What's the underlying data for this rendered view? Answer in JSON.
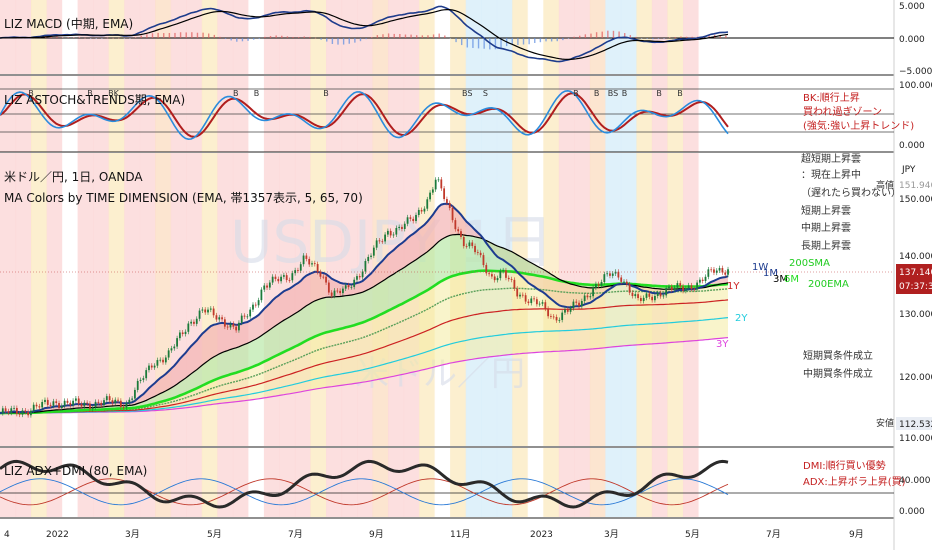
{
  "colors": {
    "price_line": "#1b3f94",
    "candle_up": "#1b7a3a",
    "candle_down": "#c0392b",
    "ma_short": "#1d3c8f",
    "ma_mid": "#000000",
    "ma_green": "#22dd22",
    "ma_1y": "#cc2222",
    "ma_2y": "#22ccdd",
    "ma_3y": "#dd44dd",
    "macd": "#1e3c8c",
    "signal": "#000000",
    "stoch_fast": "#2a8cdc",
    "stoch_slow": "#b01e1e",
    "adx": "#2a2a2a",
    "plus_di": "#2a7ad6",
    "minus_di": "#c0392b",
    "last_price_bg": "#b02020"
  },
  "macd_panel": {
    "title": "LIZ MACD (中期, EMA)",
    "axis_labels": [
      "5.000",
      "0.000",
      "−5.000"
    ]
  },
  "stoch_panel": {
    "title": "LIZ ASTOCH&TRENDS期, EMA)",
    "axis_labels": [
      "100.000",
      "0.000"
    ],
    "legend_lines": [
      "BK:順行上昇",
      "買われ過ぎゾーン",
      "(強気:強い上昇トレンド)"
    ],
    "markers": [
      {
        "t": 0.035,
        "text": "B"
      },
      {
        "t": 0.12,
        "text": "B"
      },
      {
        "t": 0.15,
        "text": "BK"
      },
      {
        "t": 0.33,
        "text": "B"
      },
      {
        "t": 0.36,
        "text": "B"
      },
      {
        "t": 0.46,
        "text": "B"
      },
      {
        "t": 0.66,
        "text": "BS"
      },
      {
        "t": 0.69,
        "text": "S"
      },
      {
        "t": 0.82,
        "text": "B"
      },
      {
        "t": 0.85,
        "text": "B"
      },
      {
        "t": 0.87,
        "text": "BS"
      },
      {
        "t": 0.89,
        "text": "B"
      },
      {
        "t": 0.94,
        "text": "B"
      },
      {
        "t": 0.97,
        "text": "B"
      }
    ]
  },
  "main_panel": {
    "symbol_line": "米ドル／円, 1日, OANDA",
    "indicator_line": "MA Colors by TIME DIMENSION (EMA, 帯1357表示, 5, 65, 70)",
    "watermark": "USDJPY 1日",
    "watermark_sub": "米ドル／円",
    "currency": "JPY",
    "high_label": "高値",
    "high_value": "151.946",
    "low_label": "安値",
    "low_value": "112.532",
    "last_price": "137.140",
    "countdown": "07:37:33",
    "axis_labels": [
      "150.000",
      "140.000",
      "130.000",
      "120.000",
      "110.000"
    ],
    "legend_top": [
      "超短期上昇雲",
      "：現在上昇中",
      "（遅れたら買わない）",
      "短期上昇雲",
      "中期上昇雲",
      "長期上昇雲"
    ],
    "legend_bottom": [
      "短期買条件成立",
      "中期買条件成立"
    ],
    "ma_tags": {
      "w1": "1W",
      "m1": "1M",
      "m3": "3M",
      "m6": "6M",
      "sma200": "200SMA",
      "ema200": "200EMA",
      "y1": "1Y",
      "y2": "2Y",
      "y3": "3Y"
    }
  },
  "adx_panel": {
    "title": "LIZ ADX+DMI (80, EMA)",
    "axis_labels": [
      "40.000",
      "0.000"
    ],
    "legend_lines": [
      "DMI:順行買い優勢",
      "ADX:上昇ボラ上昇(買)"
    ]
  },
  "time_axis": {
    "labels": [
      "4",
      "2022",
      "3月",
      "5月",
      "7月",
      "9月",
      "11月",
      "2023",
      "3月",
      "5月",
      "7月",
      "9月"
    ]
  },
  "chart_data": {
    "type": "line",
    "title": "米ドル／円, 1日, OANDA",
    "xlabel": "",
    "ylabel": "JPY",
    "ylim": [
      108,
      155
    ],
    "x_range": [
      "2021-12",
      "2023-09"
    ],
    "series": [
      {
        "name": "",
        "x": [
          "2021-12-01",
          "2021-12-20",
          "2022-01-10",
          "2022-01-31",
          "2022-02-20",
          "2022-03-05",
          "2022-03-15",
          "2022-03-25",
          "2022-04-05",
          "2022-04-20",
          "2022-05-01",
          "2022-05-15",
          "2022-05-25",
          "2022-06-05",
          "2022-06-15",
          "2022-06-25",
          "2022-07-05",
          "2022-07-15",
          "2022-07-28",
          "2022-08-05",
          "2022-08-15",
          "2022-08-25",
          "2022-09-05",
          "2022-09-15",
          "2022-09-25",
          "2022-10-05",
          "2022-10-15",
          "2022-10-21",
          "2022-10-30",
          "2022-11-10",
          "2022-11-20",
          "2022-12-01",
          "2022-12-10",
          "2022-12-20",
          "2023-01-05",
          "2023-01-16",
          "2023-01-25",
          "2023-02-05",
          "2023-02-15",
          "2023-02-28",
          "2023-03-08",
          "2023-03-20",
          "2023-04-01",
          "2023-04-10",
          "2023-04-25",
          "2023-05-05",
          "2023-05-15",
          "2023-05-26"
        ],
        "values": [
          113.4,
          113.8,
          115.2,
          114.8,
          115.3,
          115.0,
          118.4,
          121.8,
          122.9,
          128.1,
          130.3,
          128.8,
          127.2,
          130.2,
          134.3,
          135.2,
          136.1,
          138.6,
          136.4,
          132.8,
          133.6,
          136.4,
          140.3,
          143.2,
          143.9,
          145.4,
          148.7,
          151.9,
          147.2,
          141.6,
          139.8,
          135.8,
          136.4,
          133.2,
          131.4,
          128.9,
          130.2,
          131.3,
          134.2,
          136.2,
          135.8,
          131.7,
          132.8,
          133.6,
          134.1,
          134.9,
          136.8,
          137.14
        ]
      }
    ]
  }
}
